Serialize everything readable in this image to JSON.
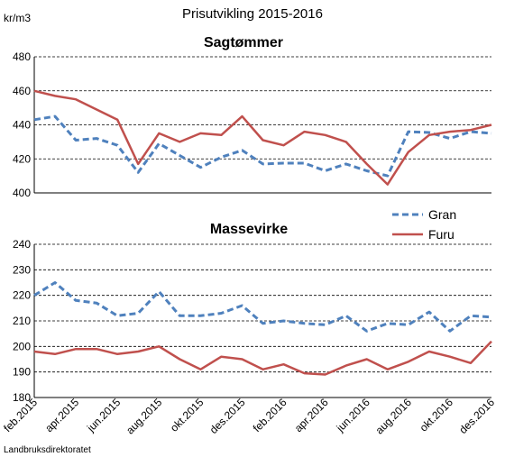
{
  "title": "Prisutvikling 2015-2016",
  "ylabel": "kr/m3",
  "source": "Landbruksdirektoratet",
  "colors": {
    "gran": "#4F81BD",
    "furu": "#C0504D",
    "grid": "#000000"
  },
  "legend": [
    "Gran",
    "Furu"
  ],
  "xtick_labels": [
    "feb.2015",
    "apr.2015",
    "jun.2015",
    "aug.2015",
    "okt.2015",
    "des.2015",
    "feb.2016",
    "apr.2016",
    "jun.2016",
    "aug.2016",
    "okt.2016",
    "des.2016"
  ],
  "chart_data": [
    {
      "type": "line",
      "title": "Sagtømmer",
      "x": [
        "feb.2015",
        "mar.2015",
        "apr.2015",
        "mai.2015",
        "jun.2015",
        "jul.2015",
        "aug.2015",
        "sep.2015",
        "okt.2015",
        "nov.2015",
        "des.2015",
        "jan.2016",
        "feb.2016",
        "mar.2016",
        "apr.2016",
        "mai.2016",
        "jun.2016",
        "jul.2016",
        "aug.2016",
        "sep.2016",
        "okt.2016",
        "nov.2016",
        "des.2016"
      ],
      "ylim": [
        400,
        480
      ],
      "yticks": [
        400,
        420,
        440,
        460,
        480
      ],
      "series": [
        {
          "name": "Gran",
          "values": [
            443,
            445,
            431,
            432,
            428,
            412,
            429,
            422,
            415,
            421,
            425,
            417,
            417.5,
            417.5,
            413,
            417,
            413,
            410,
            436,
            435.5,
            432,
            436,
            435
          ]
        },
        {
          "name": "Furu",
          "values": [
            460,
            457,
            455,
            449,
            443,
            417,
            435,
            430,
            435,
            434,
            445,
            431,
            428,
            436,
            434,
            430,
            417,
            405,
            424,
            434,
            436,
            437,
            440
          ]
        }
      ]
    },
    {
      "type": "line",
      "title": "Massevirke",
      "x": [
        "feb.2015",
        "mar.2015",
        "apr.2015",
        "mai.2015",
        "jun.2015",
        "jul.2015",
        "aug.2015",
        "sep.2015",
        "okt.2015",
        "nov.2015",
        "des.2015",
        "jan.2016",
        "feb.2016",
        "mar.2016",
        "apr.2016",
        "mai.2016",
        "jun.2016",
        "jul.2016",
        "aug.2016",
        "sep.2016",
        "okt.2016",
        "nov.2016",
        "des.2016"
      ],
      "ylim": [
        180,
        240
      ],
      "yticks": [
        180,
        190,
        200,
        210,
        220,
        230,
        240
      ],
      "series": [
        {
          "name": "Gran",
          "values": [
            220,
            225,
            218,
            217,
            212,
            213,
            221.5,
            212,
            212,
            213,
            216,
            209,
            210,
            209,
            208.5,
            212,
            206,
            209,
            208.5,
            213.5,
            206,
            212,
            211.5
          ]
        },
        {
          "name": "Furu",
          "values": [
            198,
            197,
            199,
            199,
            197,
            198,
            200,
            195,
            191,
            196,
            195,
            191,
            193,
            189.5,
            189,
            192.5,
            195,
            191,
            194,
            198,
            196,
            193.5,
            202
          ]
        }
      ]
    }
  ]
}
